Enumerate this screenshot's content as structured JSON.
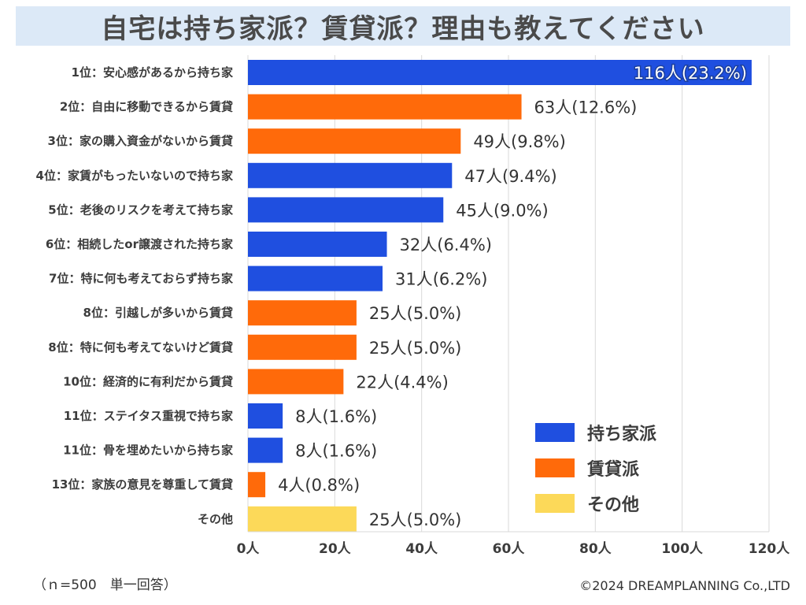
{
  "title": "自宅は持ち家派？賃貸派？理由も教えてください",
  "note": "（ｎ=500　単一回答）",
  "copyright": "©2024 DREAMPLANNING Co.,LTD",
  "colors": {
    "own": "#1f4fe0",
    "rent": "#ff6a0a",
    "other": "#fcd959",
    "title_bg": "#dce9f7",
    "grid": "#d9d9d9"
  },
  "chart_data": {
    "type": "bar",
    "orientation": "horizontal",
    "title": "自宅は持ち家派？賃貸派？理由も教えてください",
    "xlim": [
      0,
      120
    ],
    "x_ticks": [
      0,
      20,
      40,
      60,
      80,
      100,
      120
    ],
    "x_tick_labels": [
      "0人",
      "20人",
      "40人",
      "60人",
      "80人",
      "100人",
      "120人"
    ],
    "legend": [
      {
        "name": "持ち家派",
        "group": "own"
      },
      {
        "name": "賃貸派",
        "group": "rent"
      },
      {
        "name": "その他",
        "group": "other"
      }
    ],
    "categories": [
      {
        "label": "1位：安心感があるから持ち家",
        "value": 116,
        "pct": "23.2%",
        "display": "116人(23.2%)",
        "group": "own"
      },
      {
        "label": "2位：自由に移動できるから賃貸",
        "value": 63,
        "pct": "12.6%",
        "display": "63人(12.6%)",
        "group": "rent"
      },
      {
        "label": "3位：家の購入資金がないから賃貸",
        "value": 49,
        "pct": "9.8%",
        "display": "49人(9.8%)",
        "group": "rent"
      },
      {
        "label": "4位：家賃がもったいないので持ち家",
        "value": 47,
        "pct": "9.4%",
        "display": "47人(9.4%)",
        "group": "own"
      },
      {
        "label": "5位：老後のリスクを考えて持ち家",
        "value": 45,
        "pct": "9.0%",
        "display": "45人(9.0%)",
        "group": "own"
      },
      {
        "label": "6位：相続したor譲渡された持ち家",
        "value": 32,
        "pct": "6.4%",
        "display": "32人(6.4%)",
        "group": "own"
      },
      {
        "label": "7位：特に何も考えておらず持ち家",
        "value": 31,
        "pct": "6.2%",
        "display": "31人(6.2%)",
        "group": "own"
      },
      {
        "label": "8位：引越しが多いから賃貸",
        "value": 25,
        "pct": "5.0%",
        "display": "25人(5.0%)",
        "group": "rent"
      },
      {
        "label": "8位：特に何も考えてないけど賃貸",
        "value": 25,
        "pct": "5.0%",
        "display": "25人(5.0%)",
        "group": "rent"
      },
      {
        "label": "10位：経済的に有利だから賃貸",
        "value": 22,
        "pct": "4.4%",
        "display": "22人(4.4%)",
        "group": "rent"
      },
      {
        "label": "11位：ステイタス重視で持ち家",
        "value": 8,
        "pct": "1.6%",
        "display": "8人(1.6%)",
        "group": "own"
      },
      {
        "label": "11位：骨を埋めたいから持ち家",
        "value": 8,
        "pct": "1.6%",
        "display": "8人(1.6%)",
        "group": "own"
      },
      {
        "label": "13位：家族の意見を尊重して賃貸",
        "value": 4,
        "pct": "0.8%",
        "display": "4人(0.8%)",
        "group": "rent"
      },
      {
        "label": "その他",
        "value": 25,
        "pct": "5.0%",
        "display": "25人(5.0%)",
        "group": "other"
      }
    ]
  }
}
